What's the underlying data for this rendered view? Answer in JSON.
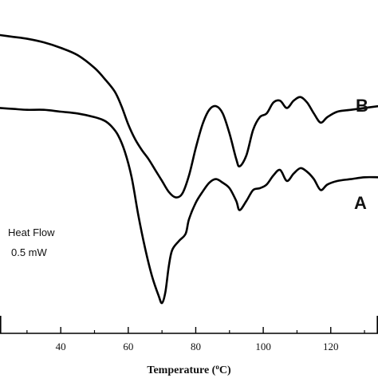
{
  "chart_data": {
    "type": "line",
    "title": "",
    "xlabel": "Temperature (°C)",
    "xlabel_parts": {
      "prefix": "Temperature (",
      "superscript": "o",
      "suffix": "C)"
    },
    "ylabel": "",
    "xlim": [
      22,
      134
    ],
    "xticks": [
      40,
      60,
      80,
      100,
      120
    ],
    "yticks_labeled": false,
    "grid": false,
    "annotations": [
      "Heat Flow",
      "0.5 mW"
    ],
    "series": [
      {
        "name": "B",
        "color": "#000000",
        "x": [
          22,
          26,
          30,
          35,
          40,
          45,
          50,
          53,
          56,
          58,
          60,
          62,
          64,
          66,
          68,
          70,
          72,
          74,
          76,
          78,
          80,
          82,
          84,
          86,
          88,
          90,
          92,
          93,
          95,
          97,
          99,
          101,
          103,
          105,
          107,
          109,
          111,
          113,
          115,
          117,
          119,
          122,
          126,
          130,
          134
        ],
        "y": [
          0.0,
          0.2,
          0.4,
          0.8,
          1.4,
          2.2,
          3.6,
          4.8,
          6.2,
          7.8,
          9.8,
          11.4,
          12.6,
          13.6,
          14.8,
          16.0,
          17.2,
          17.8,
          17.4,
          15.4,
          12.4,
          9.8,
          8.2,
          7.8,
          8.6,
          10.8,
          13.6,
          14.4,
          13.2,
          10.4,
          9.0,
          8.6,
          7.4,
          7.2,
          8.0,
          7.2,
          6.8,
          7.4,
          8.6,
          9.6,
          9.0,
          8.4,
          8.2,
          8.0,
          7.8
        ]
      },
      {
        "name": "A",
        "color": "#000000",
        "x": [
          22,
          26,
          30,
          35,
          40,
          45,
          50,
          53,
          55,
          57,
          59,
          61,
          63,
          65,
          67,
          69,
          70,
          71,
          72,
          73,
          75,
          77,
          78,
          80,
          82,
          84,
          86,
          88,
          90,
          92,
          93,
          95,
          97,
          99,
          101,
          103,
          105,
          107,
          109,
          111,
          113,
          115,
          117,
          119,
          122,
          126,
          130,
          134
        ],
        "y": [
          8.0,
          8.1,
          8.2,
          8.2,
          8.4,
          8.6,
          9.0,
          9.4,
          10.0,
          11.0,
          12.8,
          15.6,
          19.8,
          23.4,
          26.4,
          28.6,
          29.4,
          28.2,
          25.4,
          23.6,
          22.6,
          21.8,
          20.2,
          18.4,
          17.2,
          16.2,
          15.8,
          16.2,
          16.8,
          18.2,
          19.2,
          18.2,
          17.0,
          16.8,
          16.4,
          15.4,
          14.8,
          16.0,
          15.2,
          14.6,
          15.0,
          15.8,
          17.0,
          16.4,
          16.0,
          15.8,
          15.6,
          15.6
        ]
      }
    ]
  }
}
